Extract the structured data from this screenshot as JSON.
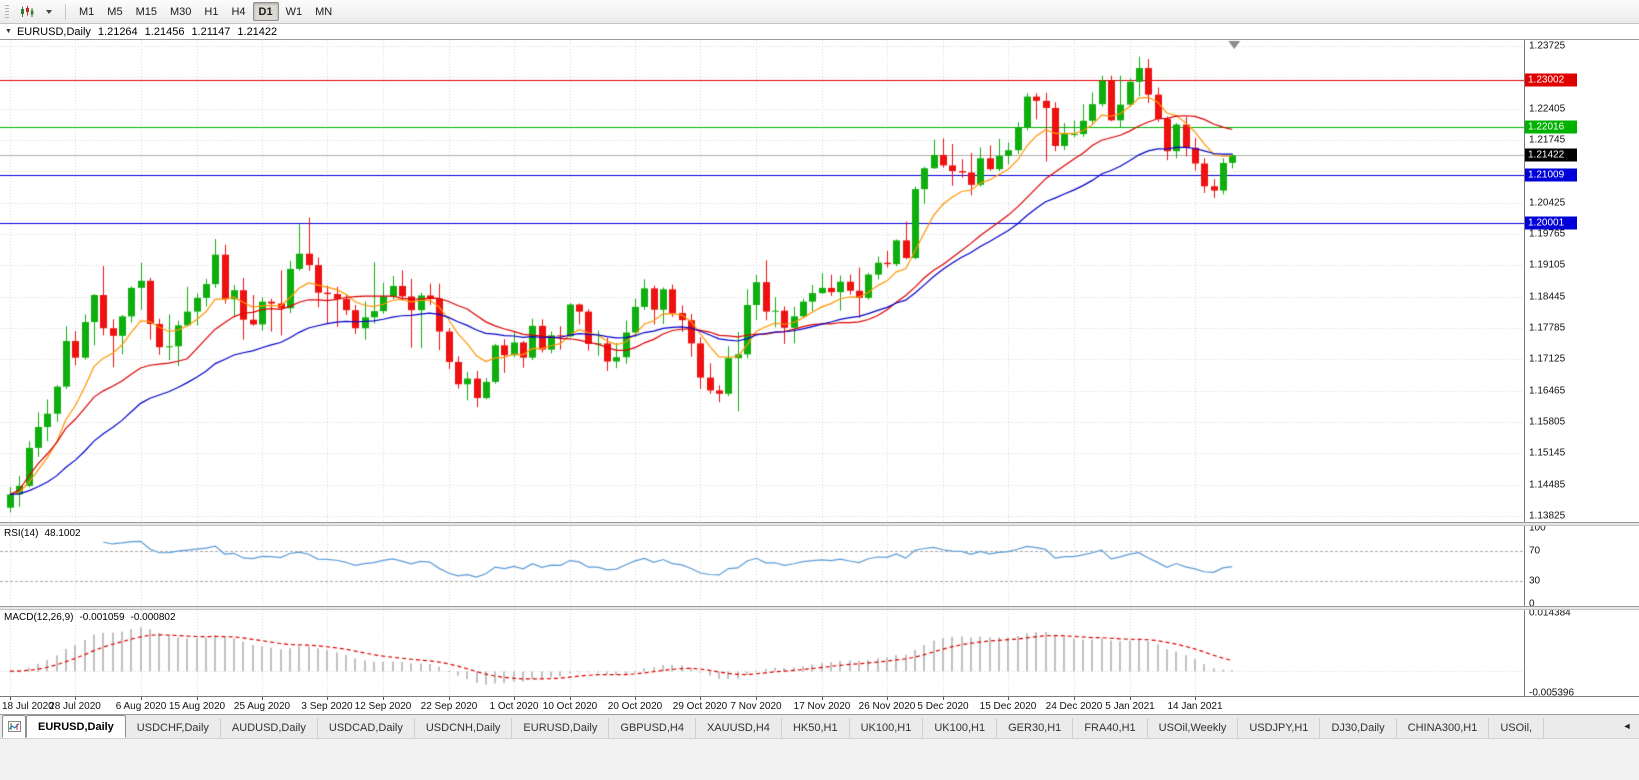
{
  "toolbar": {
    "timeframes": [
      "M1",
      "M5",
      "M15",
      "M30",
      "H1",
      "H4",
      "D1",
      "W1",
      "MN"
    ],
    "active_timeframe": "D1"
  },
  "chart_header": {
    "collapse_glyph": "▼",
    "symbol": "EURUSD,Daily",
    "open": "1.21264",
    "high": "1.21456",
    "low": "1.21147",
    "close": "1.21422"
  },
  "price_axis": {
    "badges": [
      {
        "value": "1.23002",
        "price": 1.23002,
        "color": "#e00000",
        "type": "resistance-red"
      },
      {
        "value": "1.22016",
        "price": 1.22016,
        "color": "#00b200",
        "type": "level-green"
      },
      {
        "value": "1.21422",
        "price": 1.21422,
        "color": "#000000",
        "type": "current-price"
      },
      {
        "value": "1.21009",
        "price": 1.21009,
        "color": "#0000d8",
        "type": "support-blue-1"
      },
      {
        "value": "1.20001",
        "price": 1.20001,
        "color": "#0000d8",
        "type": "support-blue-2"
      }
    ]
  },
  "indicators": {
    "rsi": {
      "name": "RSI(14)",
      "value": "48.1002",
      "axis_labels": [
        {
          "label": "100",
          "value": 100
        },
        {
          "label": "70",
          "value": 70
        },
        {
          "label": "30",
          "value": 30
        },
        {
          "label": "0",
          "value": 0
        }
      ]
    },
    "macd": {
      "name": "MACD(12,26,9)",
      "value": "-0.001059",
      "signal_value": "-0.000802",
      "axis_labels": [
        {
          "label": "0.014384",
          "value": 0.014384
        },
        {
          "label": "-0.005396",
          "value": -0.005396
        }
      ]
    }
  },
  "tabs": {
    "active_index": 0,
    "scroll_left_glyph": "◄",
    "items": [
      "EURUSD,Daily",
      "USDCHF,Daily",
      "AUDUSD,Daily",
      "USDCAD,Daily",
      "USDCNH,Daily",
      "EURUSD,Daily",
      "GBPUSD,H4",
      "XAUUSD,H4",
      "HK50,H1",
      "UK100,H1",
      "UK100,H1",
      "GER30,H1",
      "FRA40,H1",
      "USOil,Weekly",
      "USDJPY,H1",
      "DJ30,Daily",
      "CHINA300,H1",
      "USOil,"
    ]
  },
  "colors": {
    "bull": "#0fae0f",
    "bear": "#ee1111",
    "grid": "#d6d6d6",
    "current_price_line": "#b0b0b0",
    "rsi_line": "#5b9bd5",
    "rsi_levels": "#a8a8a8",
    "macd_hist": "#c0c0c0",
    "macd_signal": "#e00000",
    "shift_marker": "#8c8c8c"
  },
  "chart_data": {
    "type": "candlestick+indicators",
    "main": {
      "type": "candlestick",
      "symbol": "EURUSD",
      "timeframe": "Daily",
      "y_axis": {
        "min": 1.13825,
        "max": 1.23725,
        "grid_step": 0.0066,
        "tick_labels": [
          "1.23725",
          "1.22405",
          "1.21745",
          "1.20425",
          "1.19765",
          "1.19105",
          "1.18445",
          "1.17785",
          "1.17125",
          "1.16465",
          "1.15805",
          "1.15145",
          "1.14485",
          "1.13825"
        ]
      },
      "x_ticks": [
        {
          "index": 0,
          "label": "18 Jul 2020"
        },
        {
          "index": 7,
          "label": "28 Jul 2020"
        },
        {
          "index": 14,
          "label": "6 Aug 2020"
        },
        {
          "index": 20,
          "label": "15 Aug 2020"
        },
        {
          "index": 27,
          "label": "25 Aug 2020"
        },
        {
          "index": 34,
          "label": "3 Sep 2020"
        },
        {
          "index": 40,
          "label": "12 Sep 2020"
        },
        {
          "index": 47,
          "label": "22 Sep 2020"
        },
        {
          "index": 54,
          "label": "1 Oct 2020"
        },
        {
          "index": 60,
          "label": "10 Oct 2020"
        },
        {
          "index": 67,
          "label": "20 Oct 2020"
        },
        {
          "index": 74,
          "label": "29 Oct 2020"
        },
        {
          "index": 80,
          "label": "7 Nov 2020"
        },
        {
          "index": 87,
          "label": "17 Nov 2020"
        },
        {
          "index": 94,
          "label": "26 Nov 2020"
        },
        {
          "index": 100,
          "label": "5 Dec 2020"
        },
        {
          "index": 107,
          "label": "15 Dec 2020"
        },
        {
          "index": 114,
          "label": "24 Dec 2020"
        },
        {
          "index": 120,
          "label": "5 Jan 2021"
        },
        {
          "index": 127,
          "label": "14 Jan 2021"
        }
      ],
      "hlines": [
        {
          "price": 1.23002,
          "color": "#e00000"
        },
        {
          "price": 1.22016,
          "color": "#00b200"
        },
        {
          "price": 1.21009,
          "color": "#0000d8"
        },
        {
          "price": 1.20001,
          "color": "#0000d8"
        }
      ],
      "current_price": 1.21422,
      "overlays": [
        {
          "name": "ma-fast",
          "method": "ema",
          "period": 8,
          "color": "#ff9500"
        },
        {
          "name": "ma-medium",
          "method": "sma",
          "period": 20,
          "color": "#dd0000"
        },
        {
          "name": "ma-slow",
          "method": "ema",
          "period": 30,
          "color": "#0000cc"
        }
      ],
      "candles": [
        [
          1.14,
          1.1444,
          1.139,
          1.1428
        ],
        [
          1.1428,
          1.1467,
          1.1402,
          1.1446
        ],
        [
          1.1446,
          1.154,
          1.1443,
          1.1526
        ],
        [
          1.1526,
          1.1601,
          1.1507,
          1.157
        ],
        [
          1.157,
          1.1628,
          1.154,
          1.1598
        ],
        [
          1.1598,
          1.1658,
          1.1581,
          1.1655
        ],
        [
          1.1655,
          1.1782,
          1.165,
          1.1751
        ],
        [
          1.1751,
          1.1772,
          1.17,
          1.1716
        ],
        [
          1.1716,
          1.1807,
          1.1712,
          1.1791
        ],
        [
          1.1791,
          1.185,
          1.1742,
          1.1848
        ],
        [
          1.1848,
          1.1909,
          1.1763,
          1.1778
        ],
        [
          1.1778,
          1.1797,
          1.1696,
          1.1762
        ],
        [
          1.1762,
          1.1806,
          1.1723,
          1.1803
        ],
        [
          1.1803,
          1.1866,
          1.179,
          1.1863
        ],
        [
          1.1863,
          1.1916,
          1.1817,
          1.1878
        ],
        [
          1.1878,
          1.1884,
          1.1754,
          1.1787
        ],
        [
          1.1787,
          1.1798,
          1.1722,
          1.1738
        ],
        [
          1.1738,
          1.1807,
          1.1711,
          1.174
        ],
        [
          1.174,
          1.1794,
          1.1698,
          1.1784
        ],
        [
          1.1784,
          1.1865,
          1.1782,
          1.1813
        ],
        [
          1.1813,
          1.1851,
          1.1784,
          1.1842
        ],
        [
          1.1842,
          1.1882,
          1.1824,
          1.1871
        ],
        [
          1.1871,
          1.1966,
          1.1863,
          1.1933
        ],
        [
          1.1933,
          1.1954,
          1.183,
          1.1839
        ],
        [
          1.1839,
          1.1869,
          1.1801,
          1.1858
        ],
        [
          1.1858,
          1.1884,
          1.1754,
          1.1796
        ],
        [
          1.1796,
          1.1848,
          1.1783,
          1.1786
        ],
        [
          1.1786,
          1.1843,
          1.1773,
          1.1834
        ],
        [
          1.1834,
          1.184,
          1.1771,
          1.183
        ],
        [
          1.183,
          1.19,
          1.1763,
          1.182
        ],
        [
          1.182,
          1.192,
          1.181,
          1.1903
        ],
        [
          1.1903,
          1.1997,
          1.1899,
          1.1935
        ],
        [
          1.1935,
          1.2011,
          1.1899,
          1.1911
        ],
        [
          1.1911,
          1.1927,
          1.1822,
          1.1853
        ],
        [
          1.1853,
          1.1868,
          1.1789,
          1.185
        ],
        [
          1.185,
          1.1865,
          1.1781,
          1.184
        ],
        [
          1.184,
          1.185,
          1.1806,
          1.1816
        ],
        [
          1.1816,
          1.1827,
          1.1766,
          1.1778
        ],
        [
          1.1778,
          1.1834,
          1.1754,
          1.1801
        ],
        [
          1.1801,
          1.1917,
          1.1788,
          1.1814
        ],
        [
          1.1814,
          1.1874,
          1.1808,
          1.1845
        ],
        [
          1.1845,
          1.1888,
          1.1839,
          1.1867
        ],
        [
          1.1867,
          1.19,
          1.1836,
          1.1845
        ],
        [
          1.1845,
          1.1882,
          1.1737,
          1.1816
        ],
        [
          1.1816,
          1.1853,
          1.1736,
          1.1847
        ],
        [
          1.1847,
          1.1872,
          1.1827,
          1.184
        ],
        [
          1.184,
          1.1872,
          1.1732,
          1.1771
        ],
        [
          1.1771,
          1.1778,
          1.1692,
          1.1707
        ],
        [
          1.1707,
          1.1719,
          1.1651,
          1.166
        ],
        [
          1.166,
          1.1686,
          1.1626,
          1.1672
        ],
        [
          1.1672,
          1.1688,
          1.1612,
          1.1631
        ],
        [
          1.1631,
          1.1673,
          1.1628,
          1.1665
        ],
        [
          1.1665,
          1.1745,
          1.1661,
          1.1742
        ],
        [
          1.1742,
          1.1755,
          1.1684,
          1.1721
        ],
        [
          1.1721,
          1.177,
          1.1717,
          1.1748
        ],
        [
          1.1748,
          1.1751,
          1.1695,
          1.1716
        ],
        [
          1.1716,
          1.1798,
          1.1711,
          1.1783
        ],
        [
          1.1783,
          1.1797,
          1.1727,
          1.1733
        ],
        [
          1.1733,
          1.1771,
          1.1725,
          1.1763
        ],
        [
          1.1763,
          1.1782,
          1.1733,
          1.1761
        ],
        [
          1.1761,
          1.1831,
          1.1759,
          1.1828
        ],
        [
          1.1828,
          1.183,
          1.1786,
          1.1813
        ],
        [
          1.1813,
          1.1818,
          1.1731,
          1.1745
        ],
        [
          1.1745,
          1.1773,
          1.172,
          1.1746
        ],
        [
          1.1746,
          1.1758,
          1.1688,
          1.1708
        ],
        [
          1.1708,
          1.1747,
          1.1694,
          1.1717
        ],
        [
          1.1717,
          1.1794,
          1.1703,
          1.1769
        ],
        [
          1.1769,
          1.184,
          1.176,
          1.1823
        ],
        [
          1.1823,
          1.1881,
          1.1817,
          1.1862
        ],
        [
          1.1862,
          1.1868,
          1.1786,
          1.1817
        ],
        [
          1.1817,
          1.1864,
          1.1787,
          1.186
        ],
        [
          1.186,
          1.187,
          1.1802,
          1.181
        ],
        [
          1.181,
          1.1826,
          1.177,
          1.1795
        ],
        [
          1.1795,
          1.1808,
          1.1718,
          1.1746
        ],
        [
          1.1746,
          1.1759,
          1.165,
          1.1674
        ],
        [
          1.1674,
          1.1704,
          1.164,
          1.1647
        ],
        [
          1.1647,
          1.1658,
          1.1622,
          1.164
        ],
        [
          1.164,
          1.174,
          1.1635,
          1.1715
        ],
        [
          1.1715,
          1.177,
          1.1603,
          1.1723
        ],
        [
          1.1723,
          1.186,
          1.1715,
          1.1827
        ],
        [
          1.1827,
          1.189,
          1.1795,
          1.1875
        ],
        [
          1.1875,
          1.1921,
          1.1795,
          1.1813
        ],
        [
          1.1813,
          1.1843,
          1.178,
          1.1815
        ],
        [
          1.1815,
          1.1824,
          1.1745,
          1.1779
        ],
        [
          1.1779,
          1.1823,
          1.1746,
          1.1803
        ],
        [
          1.1803,
          1.184,
          1.1799,
          1.1834
        ],
        [
          1.1834,
          1.1869,
          1.1814,
          1.1852
        ],
        [
          1.1852,
          1.1894,
          1.185,
          1.1863
        ],
        [
          1.1863,
          1.1891,
          1.1846,
          1.1854
        ],
        [
          1.1854,
          1.1889,
          1.1815,
          1.1876
        ],
        [
          1.1876,
          1.1891,
          1.1849,
          1.1857
        ],
        [
          1.1857,
          1.1906,
          1.18,
          1.1842
        ],
        [
          1.1842,
          1.1895,
          1.1838,
          1.1891
        ],
        [
          1.1891,
          1.1929,
          1.1881,
          1.1916
        ],
        [
          1.1916,
          1.1941,
          1.1906,
          1.1913
        ],
        [
          1.1913,
          1.1965,
          1.1909,
          1.1963
        ],
        [
          1.1963,
          1.2003,
          1.1923,
          1.1926
        ],
        [
          1.1926,
          1.2076,
          1.1923,
          1.2071
        ],
        [
          1.2071,
          1.2118,
          1.204,
          1.2115
        ],
        [
          1.2115,
          1.2175,
          1.2114,
          1.2143
        ],
        [
          1.2143,
          1.2178,
          1.2116,
          1.2121
        ],
        [
          1.2121,
          1.2166,
          1.2078,
          1.2109
        ],
        [
          1.2109,
          1.2134,
          1.2095,
          1.2106
        ],
        [
          1.2106,
          1.2147,
          1.2058,
          1.208
        ],
        [
          1.208,
          1.2159,
          1.2076,
          1.2136
        ],
        [
          1.2136,
          1.2163,
          1.211,
          1.2113
        ],
        [
          1.2113,
          1.2177,
          1.2109,
          1.2141
        ],
        [
          1.2141,
          1.2169,
          1.2123,
          1.2153
        ],
        [
          1.2153,
          1.2212,
          1.2145,
          1.22
        ],
        [
          1.22,
          1.2273,
          1.2195,
          1.2266
        ],
        [
          1.2266,
          1.2273,
          1.2218,
          1.2257
        ],
        [
          1.2257,
          1.2274,
          1.2129,
          1.2242
        ],
        [
          1.2242,
          1.2254,
          1.2151,
          1.2162
        ],
        [
          1.2162,
          1.221,
          1.2153,
          1.2187
        ],
        [
          1.2187,
          1.2216,
          1.218,
          1.2187
        ],
        [
          1.2187,
          1.225,
          1.2181,
          1.2215
        ],
        [
          1.2215,
          1.2275,
          1.2209,
          1.225
        ],
        [
          1.225,
          1.231,
          1.2245,
          1.2299
        ],
        [
          1.2299,
          1.231,
          1.2214,
          1.2216
        ],
        [
          1.2216,
          1.231,
          1.22,
          1.2249
        ],
        [
          1.2249,
          1.2304,
          1.2244,
          1.2297
        ],
        [
          1.2297,
          1.235,
          1.2266,
          1.2326
        ],
        [
          1.2326,
          1.2345,
          1.2252,
          1.227
        ],
        [
          1.227,
          1.2285,
          1.2213,
          1.2219
        ],
        [
          1.2219,
          1.2224,
          1.2132,
          1.2151
        ],
        [
          1.2151,
          1.221,
          1.2136,
          1.2207
        ],
        [
          1.2207,
          1.2223,
          1.214,
          1.2158
        ],
        [
          1.2158,
          1.2179,
          1.211,
          1.2125
        ],
        [
          1.2125,
          1.2136,
          1.2063,
          1.2077
        ],
        [
          1.2077,
          1.2092,
          1.2052,
          1.2068
        ],
        [
          1.2068,
          1.2136,
          1.206,
          1.2126
        ],
        [
          1.21264,
          1.21456,
          1.21147,
          1.21422
        ]
      ]
    },
    "rsi": {
      "type": "line",
      "period": 14,
      "levels": [
        70,
        30
      ],
      "ylim": [
        0,
        100
      ],
      "source": "close"
    },
    "macd": {
      "type": "histogram_line",
      "fast": 12,
      "slow": 26,
      "signal": 9,
      "ylim": [
        -0.005396,
        0.014384
      ]
    }
  }
}
